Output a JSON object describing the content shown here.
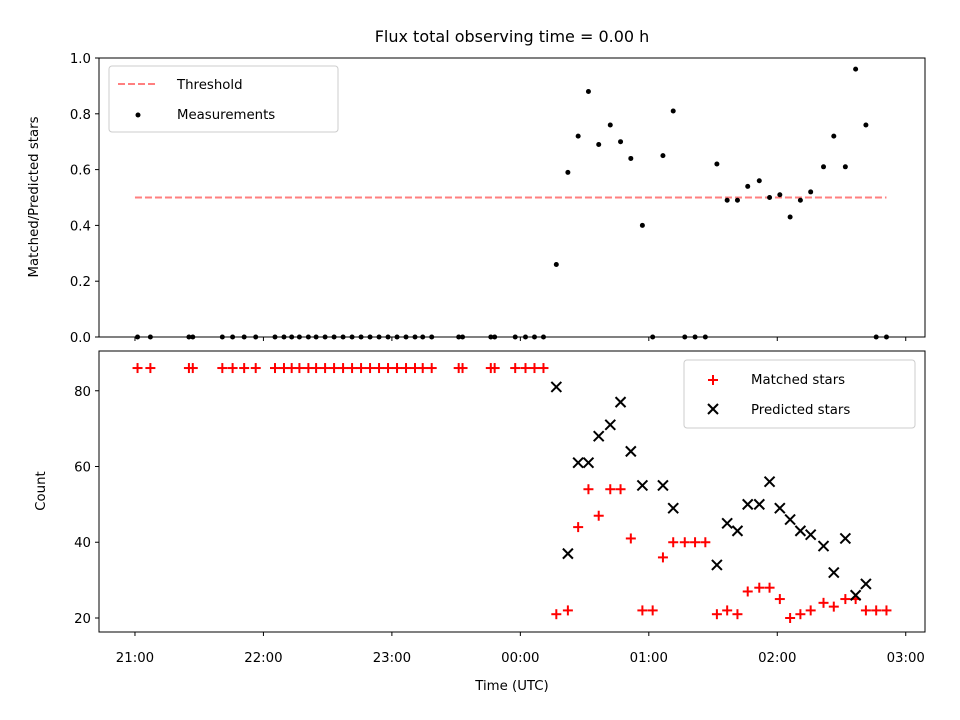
{
  "chart_data": {
    "title": "Flux total observing time = 0.00 h",
    "xlabel": "Time (UTC)",
    "x_unit": "hours (UTC, continuing past midnight: 24 = 00:00, 25 = 01:00, …)",
    "xlim": [
      20.72,
      27.15
    ],
    "xticks": [
      {
        "value": 21,
        "label": "21:00"
      },
      {
        "value": 22,
        "label": "22:00"
      },
      {
        "value": 23,
        "label": "23:00"
      },
      {
        "value": 24,
        "label": "00:00"
      },
      {
        "value": 25,
        "label": "01:00"
      },
      {
        "value": 26,
        "label": "02:00"
      },
      {
        "value": 27,
        "label": "03:00"
      }
    ],
    "panels": [
      {
        "type": "scatter",
        "ylabel": "Matched/Predicted stars",
        "ylim": [
          0,
          1.0
        ],
        "yticks": [
          0.0,
          0.2,
          0.4,
          0.6,
          0.8,
          1.0
        ],
        "ytick_labels": [
          "0.0",
          "0.2",
          "0.4",
          "0.6",
          "0.8",
          "1.0"
        ],
        "legend_position": "upper-left",
        "series": [
          {
            "name": "Threshold",
            "kind": "dashed-line",
            "color": "#ff7f7f",
            "x": [
              21.0,
              26.85
            ],
            "y": [
              0.5,
              0.5
            ]
          },
          {
            "name": "Measurements",
            "kind": "dot",
            "color": "#000000",
            "points": [
              [
                21.02,
                0
              ],
              [
                21.12,
                0
              ],
              [
                21.42,
                0
              ],
              [
                21.45,
                0
              ],
              [
                21.68,
                0
              ],
              [
                21.76,
                0
              ],
              [
                21.85,
                0
              ],
              [
                21.94,
                0
              ],
              [
                22.09,
                0
              ],
              [
                22.16,
                0
              ],
              [
                22.22,
                0
              ],
              [
                22.28,
                0
              ],
              [
                22.35,
                0
              ],
              [
                22.41,
                0
              ],
              [
                22.48,
                0
              ],
              [
                22.55,
                0
              ],
              [
                22.62,
                0
              ],
              [
                22.69,
                0
              ],
              [
                22.76,
                0
              ],
              [
                22.83,
                0
              ],
              [
                22.9,
                0
              ],
              [
                22.97,
                0
              ],
              [
                23.04,
                0
              ],
              [
                23.11,
                0
              ],
              [
                23.18,
                0
              ],
              [
                23.24,
                0
              ],
              [
                23.31,
                0
              ],
              [
                23.52,
                0
              ],
              [
                23.55,
                0
              ],
              [
                23.77,
                0
              ],
              [
                23.8,
                0
              ],
              [
                23.96,
                0
              ],
              [
                24.04,
                0
              ],
              [
                24.11,
                0
              ],
              [
                24.18,
                0
              ],
              [
                24.28,
                0.26
              ],
              [
                24.37,
                0.59
              ],
              [
                24.45,
                0.72
              ],
              [
                24.53,
                0.88
              ],
              [
                24.61,
                0.69
              ],
              [
                24.7,
                0.76
              ],
              [
                24.78,
                0.7
              ],
              [
                24.86,
                0.64
              ],
              [
                24.95,
                0.4
              ],
              [
                25.03,
                0
              ],
              [
                25.11,
                0.65
              ],
              [
                25.19,
                0.81
              ],
              [
                25.28,
                0
              ],
              [
                25.36,
                0
              ],
              [
                25.44,
                0
              ],
              [
                25.53,
                0.62
              ],
              [
                25.61,
                0.49
              ],
              [
                25.69,
                0.49
              ],
              [
                25.77,
                0.54
              ],
              [
                25.86,
                0.56
              ],
              [
                25.94,
                0.5
              ],
              [
                26.02,
                0.51
              ],
              [
                26.1,
                0.43
              ],
              [
                26.18,
                0.49
              ],
              [
                26.26,
                0.52
              ],
              [
                26.36,
                0.61
              ],
              [
                26.44,
                0.72
              ],
              [
                26.53,
                0.61
              ],
              [
                26.61,
                0.96
              ],
              [
                26.69,
                0.76
              ],
              [
                26.77,
                0
              ],
              [
                26.85,
                0
              ]
            ]
          }
        ]
      },
      {
        "type": "scatter",
        "ylabel": "Count",
        "ylim": [
          16.3,
          90.5
        ],
        "yticks": [
          20,
          40,
          60,
          80
        ],
        "ytick_labels": [
          "20",
          "40",
          "60",
          "80"
        ],
        "legend_position": "upper-right",
        "series": [
          {
            "name": "Matched stars",
            "kind": "plus",
            "color": "#ff0000",
            "points": [
              [
                21.02,
                86
              ],
              [
                21.12,
                86
              ],
              [
                21.42,
                86
              ],
              [
                21.45,
                86
              ],
              [
                21.68,
                86
              ],
              [
                21.76,
                86
              ],
              [
                21.85,
                86
              ],
              [
                21.94,
                86
              ],
              [
                22.09,
                86
              ],
              [
                22.16,
                86
              ],
              [
                22.22,
                86
              ],
              [
                22.28,
                86
              ],
              [
                22.35,
                86
              ],
              [
                22.41,
                86
              ],
              [
                22.48,
                86
              ],
              [
                22.55,
                86
              ],
              [
                22.62,
                86
              ],
              [
                22.69,
                86
              ],
              [
                22.76,
                86
              ],
              [
                22.83,
                86
              ],
              [
                22.9,
                86
              ],
              [
                22.97,
                86
              ],
              [
                23.04,
                86
              ],
              [
                23.11,
                86
              ],
              [
                23.18,
                86
              ],
              [
                23.24,
                86
              ],
              [
                23.31,
                86
              ],
              [
                23.52,
                86
              ],
              [
                23.55,
                86
              ],
              [
                23.77,
                86
              ],
              [
                23.8,
                86
              ],
              [
                23.96,
                86
              ],
              [
                24.04,
                86
              ],
              [
                24.11,
                86
              ],
              [
                24.18,
                86
              ],
              [
                24.28,
                21
              ],
              [
                24.37,
                22
              ],
              [
                24.45,
                44
              ],
              [
                24.53,
                54
              ],
              [
                24.61,
                47
              ],
              [
                24.7,
                54
              ],
              [
                24.78,
                54
              ],
              [
                24.86,
                41
              ],
              [
                24.95,
                22
              ],
              [
                25.03,
                22
              ],
              [
                25.11,
                36
              ],
              [
                25.19,
                40
              ],
              [
                25.28,
                40
              ],
              [
                25.36,
                40
              ],
              [
                25.44,
                40
              ],
              [
                25.53,
                21
              ],
              [
                25.61,
                22
              ],
              [
                25.69,
                21
              ],
              [
                25.77,
                27
              ],
              [
                25.86,
                28
              ],
              [
                25.94,
                28
              ],
              [
                26.02,
                25
              ],
              [
                26.1,
                20
              ],
              [
                26.18,
                21
              ],
              [
                26.26,
                22
              ],
              [
                26.36,
                24
              ],
              [
                26.44,
                23
              ],
              [
                26.53,
                25
              ],
              [
                26.61,
                25
              ],
              [
                26.69,
                22
              ],
              [
                26.77,
                22
              ],
              [
                26.85,
                22
              ]
            ]
          },
          {
            "name": "Predicted stars",
            "kind": "x",
            "color": "#000000",
            "points": [
              [
                24.28,
                81
              ],
              [
                24.37,
                37
              ],
              [
                24.45,
                61
              ],
              [
                24.53,
                61
              ],
              [
                24.61,
                68
              ],
              [
                24.7,
                71
              ],
              [
                24.78,
                77
              ],
              [
                24.86,
                64
              ],
              [
                24.95,
                55
              ],
              [
                25.11,
                55
              ],
              [
                25.19,
                49
              ],
              [
                25.53,
                34
              ],
              [
                25.61,
                45
              ],
              [
                25.69,
                43
              ],
              [
                25.77,
                50
              ],
              [
                25.86,
                50
              ],
              [
                25.94,
                56
              ],
              [
                26.02,
                49
              ],
              [
                26.1,
                46
              ],
              [
                26.18,
                43
              ],
              [
                26.26,
                42
              ],
              [
                26.36,
                39
              ],
              [
                26.44,
                32
              ],
              [
                26.53,
                41
              ],
              [
                26.61,
                26
              ],
              [
                26.69,
                29
              ]
            ]
          }
        ]
      }
    ]
  }
}
